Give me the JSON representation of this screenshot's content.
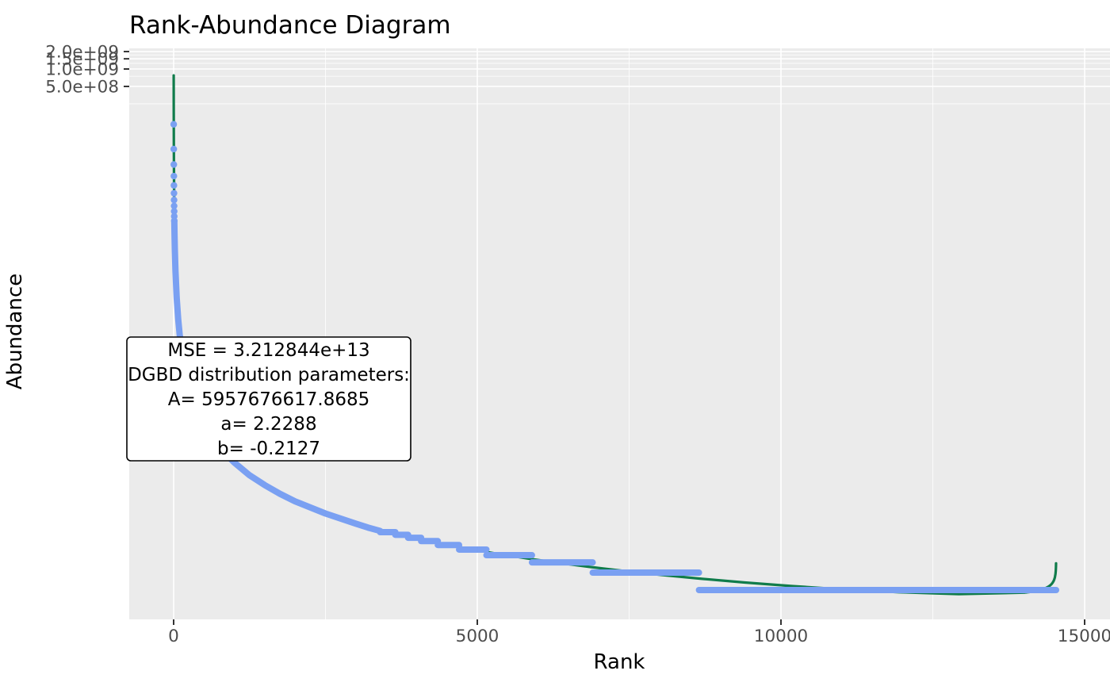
{
  "colors": {
    "panel_bg": "#EBEBEB",
    "grid": "#FFFFFF",
    "points": "#7AA0F2",
    "fit_line": "#107C4B",
    "tick_text": "#4D4D4D",
    "tick_mark": "#333333",
    "text": "#000000",
    "annotation_bg": "#FFFFFF",
    "annotation_border": "#000000"
  },
  "annotation": {
    "lines": [
      "MSE = 3.212844e+13",
      "DGBD distribution parameters:",
      "A= 5957676617.8685",
      "a= 2.2288",
      "b= -0.2127"
    ]
  },
  "chart_data": {
    "type": "scatter",
    "title": "Rank-Abundance Diagram",
    "xlabel": "Rank",
    "ylabel": "Abundance",
    "y_scale": "log10",
    "x_domain": [
      0,
      15250
    ],
    "grid": true,
    "legend": "none",
    "x_ticks": [
      {
        "label": "0",
        "value": 0
      },
      {
        "label": "5000",
        "value": 5000
      },
      {
        "label": "10000",
        "value": 10000
      },
      {
        "label": "15000",
        "value": 15000
      }
    ],
    "x_minor_ticks": [
      2500,
      7500,
      12500
    ],
    "y_ticks": [
      {
        "label": "2.0e+09",
        "value": 2000000000
      },
      {
        "label": "1.5e+09",
        "value": 1500000000
      },
      {
        "label": "1.0e+09",
        "value": 1000000000
      },
      {
        "label": "5.0e+08",
        "value": 500000000
      }
    ],
    "y_minor_ticks": [
      1750000000,
      1250000000,
      750000000,
      250000000
    ],
    "series": [
      {
        "name": "observed-abundance",
        "kind": "points",
        "head_dots": [
          [
            1,
            110830000
          ],
          [
            2,
            41380000
          ],
          [
            3,
            22350000
          ],
          [
            4,
            14130000
          ],
          [
            5,
            9760000
          ],
          [
            6,
            7150000
          ],
          [
            7,
            5460000
          ],
          [
            8,
            4310000
          ],
          [
            9,
            3480000
          ],
          [
            10,
            2860000
          ],
          [
            11,
            2396000
          ]
        ],
        "curve_points": [
          [
            11,
            2396000
          ],
          [
            12,
            2034000
          ],
          [
            15,
            1326000
          ],
          [
            20,
            753000
          ],
          [
            30,
            330000
          ],
          [
            50,
            113200
          ],
          [
            75,
            47600
          ],
          [
            100,
            25540
          ],
          [
            150,
            10540
          ],
          [
            200,
            5600
          ],
          [
            300,
            2290
          ],
          [
            400,
            1210
          ],
          [
            500,
            740
          ],
          [
            600,
            493
          ],
          [
            700,
            350
          ],
          [
            850,
            228
          ],
          [
            1000,
            159
          ],
          [
            1250,
            96
          ],
          [
            1500,
            65
          ],
          [
            1750,
            46
          ],
          [
            2000,
            34
          ],
          [
            2500,
            21
          ],
          [
            3000,
            14
          ],
          [
            3200,
            12
          ],
          [
            3400,
            10.5
          ]
        ],
        "tail_steps": [
          [
            10,
            3400,
            3650
          ],
          [
            9,
            3650,
            3860
          ],
          [
            8,
            3860,
            4075
          ],
          [
            7,
            4075,
            4350
          ],
          [
            6,
            4350,
            4700
          ],
          [
            5,
            4700,
            5150
          ],
          [
            4,
            5150,
            5900
          ],
          [
            3,
            5900,
            6900
          ],
          [
            2,
            6900,
            8650
          ],
          [
            1,
            8650,
            14530
          ]
        ]
      },
      {
        "name": "dgbd-fit",
        "kind": "line",
        "params": {
          "A": 5957676617.8685,
          "a": 2.2288,
          "b": -0.2127,
          "N": 14530,
          "mse": "3.212844e+13"
        },
        "domain": [
          1,
          14529.5
        ]
      }
    ]
  }
}
